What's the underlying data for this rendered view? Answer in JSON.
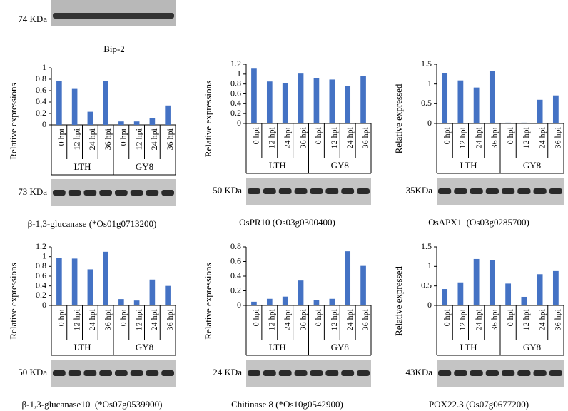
{
  "top_blot": {
    "kda": "74 KDa",
    "label": "Bip-2"
  },
  "chart_data": [
    {
      "type": "bar",
      "ylabel": "Relative expressions",
      "categories": [
        "0 hpi",
        "12 hpi",
        "24 hpi",
        "36 hpi",
        "0 hpi",
        "12 hpi",
        "24 hpi",
        "36 hpi"
      ],
      "groups": [
        "LTH",
        "GY8"
      ],
      "values": [
        0.77,
        0.63,
        0.23,
        0.77,
        0.06,
        0.06,
        0.12,
        0.34
      ],
      "color": "#4472c4",
      "ylim": [
        0,
        1
      ],
      "yticks": [
        0,
        0.2,
        0.4,
        0.6,
        0.8,
        1
      ],
      "kda": "73 KDa",
      "caption": "β-1,3-glucanase (*Os01g0713200)"
    },
    {
      "type": "bar",
      "ylabel": "Relative expressions",
      "categories": [
        "0 hpi",
        "12 hpi",
        "24 hpi",
        "36 hpi",
        "0 hpi",
        "12 hpi",
        "24 hpi",
        "36 hpi"
      ],
      "groups": [
        "LTH",
        "GY8"
      ],
      "values": [
        1.11,
        0.85,
        0.81,
        1.01,
        0.92,
        0.89,
        0.76,
        0.96
      ],
      "color": "#4472c4",
      "ylim": [
        0,
        1.2
      ],
      "yticks": [
        0,
        0.2,
        0.4,
        0.6,
        0.8,
        1,
        1.2
      ],
      "kda": "50 KDa",
      "caption": "OsPR10 (Os03g0300400)"
    },
    {
      "type": "bar",
      "ylabel": "Relative expressed",
      "categories": [
        "0 hpi",
        "12 hpi",
        "24 hpi",
        "36 hpi",
        "0 hpi",
        "12 hpi",
        "24 hpi",
        "36 hpi"
      ],
      "groups": [
        "LTH",
        "GY8"
      ],
      "values": [
        1.28,
        1.09,
        0.91,
        1.33,
        0.02,
        0.02,
        0.6,
        0.71
      ],
      "color": "#4472c4",
      "ylim": [
        0,
        1.5
      ],
      "yticks": [
        0,
        0.5,
        1,
        1.5
      ],
      "kda": "35KDa",
      "caption": "OsAPX1  (Os03g0285700)"
    },
    {
      "type": "bar",
      "ylabel": "Relative expressions",
      "categories": [
        "0 hpi",
        "12 hpi",
        "24 hpi",
        "36 hpi",
        "0 hpi",
        "12 hpi",
        "24 hpi",
        "36 hpi"
      ],
      "groups": [
        "LTH",
        "GY8"
      ],
      "values": [
        0.98,
        0.96,
        0.74,
        1.1,
        0.13,
        0.1,
        0.53,
        0.4
      ],
      "color": "#4472c4",
      "ylim": [
        0,
        1.2
      ],
      "yticks": [
        0,
        0.2,
        0.4,
        0.6,
        0.8,
        1,
        1.2
      ],
      "kda": "50 KDa",
      "caption": "β-1,3-glucanase10  (*Os07g0539900)"
    },
    {
      "type": "bar",
      "ylabel": "Relative expressions",
      "categories": [
        "0 hpi",
        "12 hpi",
        "24 hpi",
        "36 hpi",
        "0 hpi",
        "12 hpi",
        "24 hpi",
        "36 hpi"
      ],
      "groups": [
        "LTH",
        "GY8"
      ],
      "values": [
        0.05,
        0.09,
        0.12,
        0.34,
        0.07,
        0.09,
        0.74,
        0.54
      ],
      "color": "#4472c4",
      "ylim": [
        0,
        0.8
      ],
      "yticks": [
        0,
        0.2,
        0.4,
        0.6,
        0.8
      ],
      "kda": "24 KDa",
      "caption": "Chitinase 8 (*Os10g0542900)"
    },
    {
      "type": "bar",
      "ylabel": "Relative expressed",
      "categories": [
        "0 hpi",
        "12 hpi",
        "24 hpi",
        "36 hpi",
        "0 hpi",
        "12 hpi",
        "24 hpi",
        "36 hpi"
      ],
      "groups": [
        "LTH",
        "GY8"
      ],
      "values": [
        0.42,
        0.59,
        1.19,
        1.17,
        0.56,
        0.22,
        0.8,
        0.88
      ],
      "color": "#4472c4",
      "ylim": [
        0,
        1.5
      ],
      "yticks": [
        0,
        0.5,
        1,
        1.5
      ],
      "kda": "43KDa",
      "caption": "POX22.3 (Os07g0677200)"
    }
  ]
}
